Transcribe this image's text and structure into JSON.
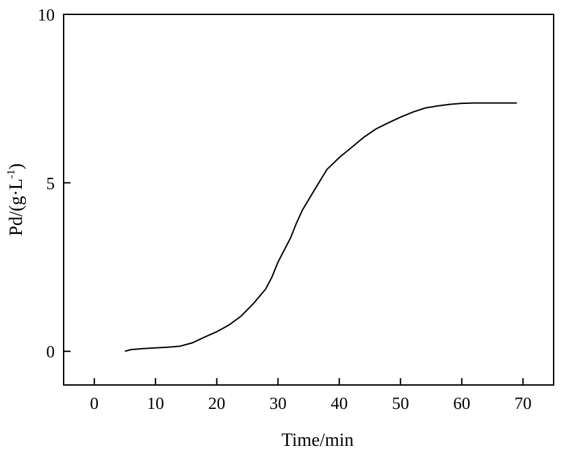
{
  "chart_data": {
    "type": "line",
    "title": "",
    "xlabel": "Time/min",
    "ylabel_main": "Pd/(g·L",
    "ylabel_sup": "-1",
    "ylabel_close": ")",
    "xlim": [
      -5,
      75
    ],
    "ylim": [
      -1,
      10
    ],
    "xticks": [
      0,
      10,
      20,
      30,
      40,
      50,
      60,
      70
    ],
    "yticks": [
      0,
      5,
      10
    ],
    "grid": false,
    "legend": "none",
    "series": [
      {
        "color": "#000000",
        "x": [
          5,
          6,
          8,
          10,
          12,
          14,
          16,
          18,
          20,
          22,
          24,
          26,
          28,
          29,
          30,
          31,
          32,
          33,
          34,
          35,
          36,
          38,
          40,
          42,
          44,
          46,
          48,
          50,
          52,
          54,
          56,
          58,
          60,
          62,
          64,
          66,
          69
        ],
        "y": [
          0,
          0.05,
          0.08,
          0.1,
          0.12,
          0.15,
          0.25,
          0.42,
          0.58,
          0.78,
          1.05,
          1.42,
          1.85,
          2.2,
          2.65,
          3.0,
          3.35,
          3.8,
          4.2,
          4.5,
          4.8,
          5.4,
          5.75,
          6.05,
          6.35,
          6.6,
          6.78,
          6.95,
          7.1,
          7.22,
          7.28,
          7.33,
          7.36,
          7.37,
          7.37,
          7.37,
          7.37
        ]
      }
    ]
  }
}
